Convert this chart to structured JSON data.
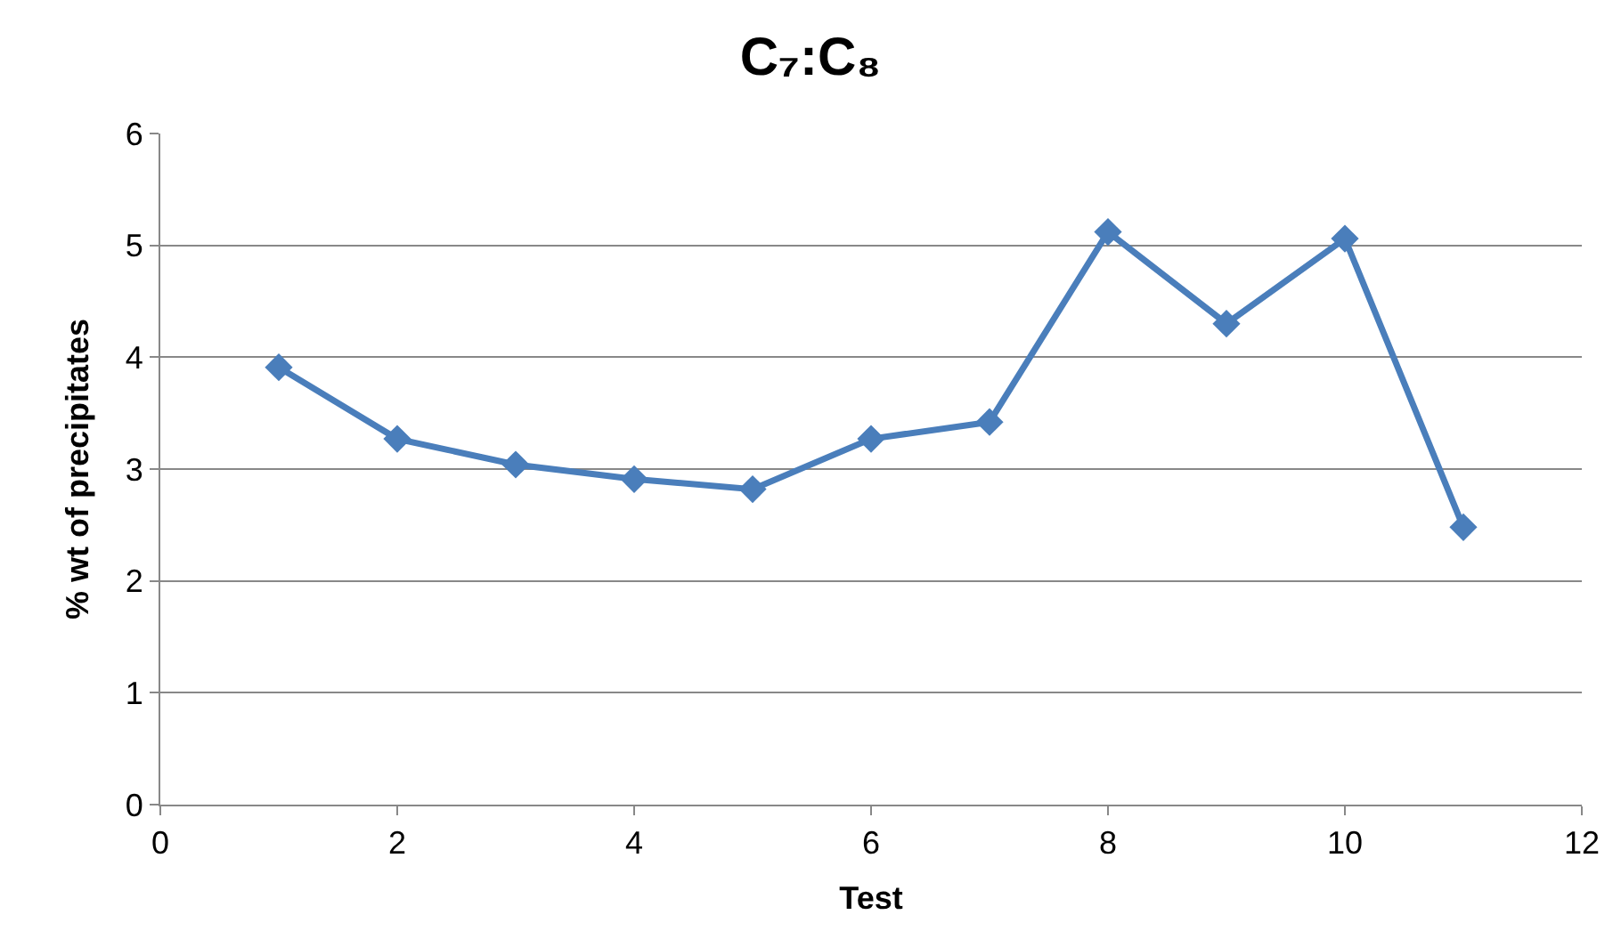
{
  "chart_data": {
    "type": "line",
    "title": "C₇:C₈",
    "xlabel": "Test",
    "ylabel": "% wt of precipitates",
    "x": [
      1,
      2,
      3,
      4,
      5,
      6,
      7,
      8,
      9,
      10,
      11
    ],
    "series": [
      {
        "color": "#4a7ebb",
        "values": [
          3.91,
          3.27,
          3.04,
          2.91,
          2.82,
          3.27,
          3.42,
          5.12,
          4.3,
          5.06,
          2.48
        ]
      }
    ],
    "xlim": [
      0,
      12
    ],
    "xticks": [
      0,
      2,
      4,
      6,
      8,
      10,
      12
    ],
    "ylim": [
      0,
      6
    ],
    "yticks": [
      0,
      1,
      2,
      3,
      4,
      5,
      6
    ],
    "grid": "y",
    "marker": "diamond",
    "line_style": "solid",
    "legend": false
  }
}
